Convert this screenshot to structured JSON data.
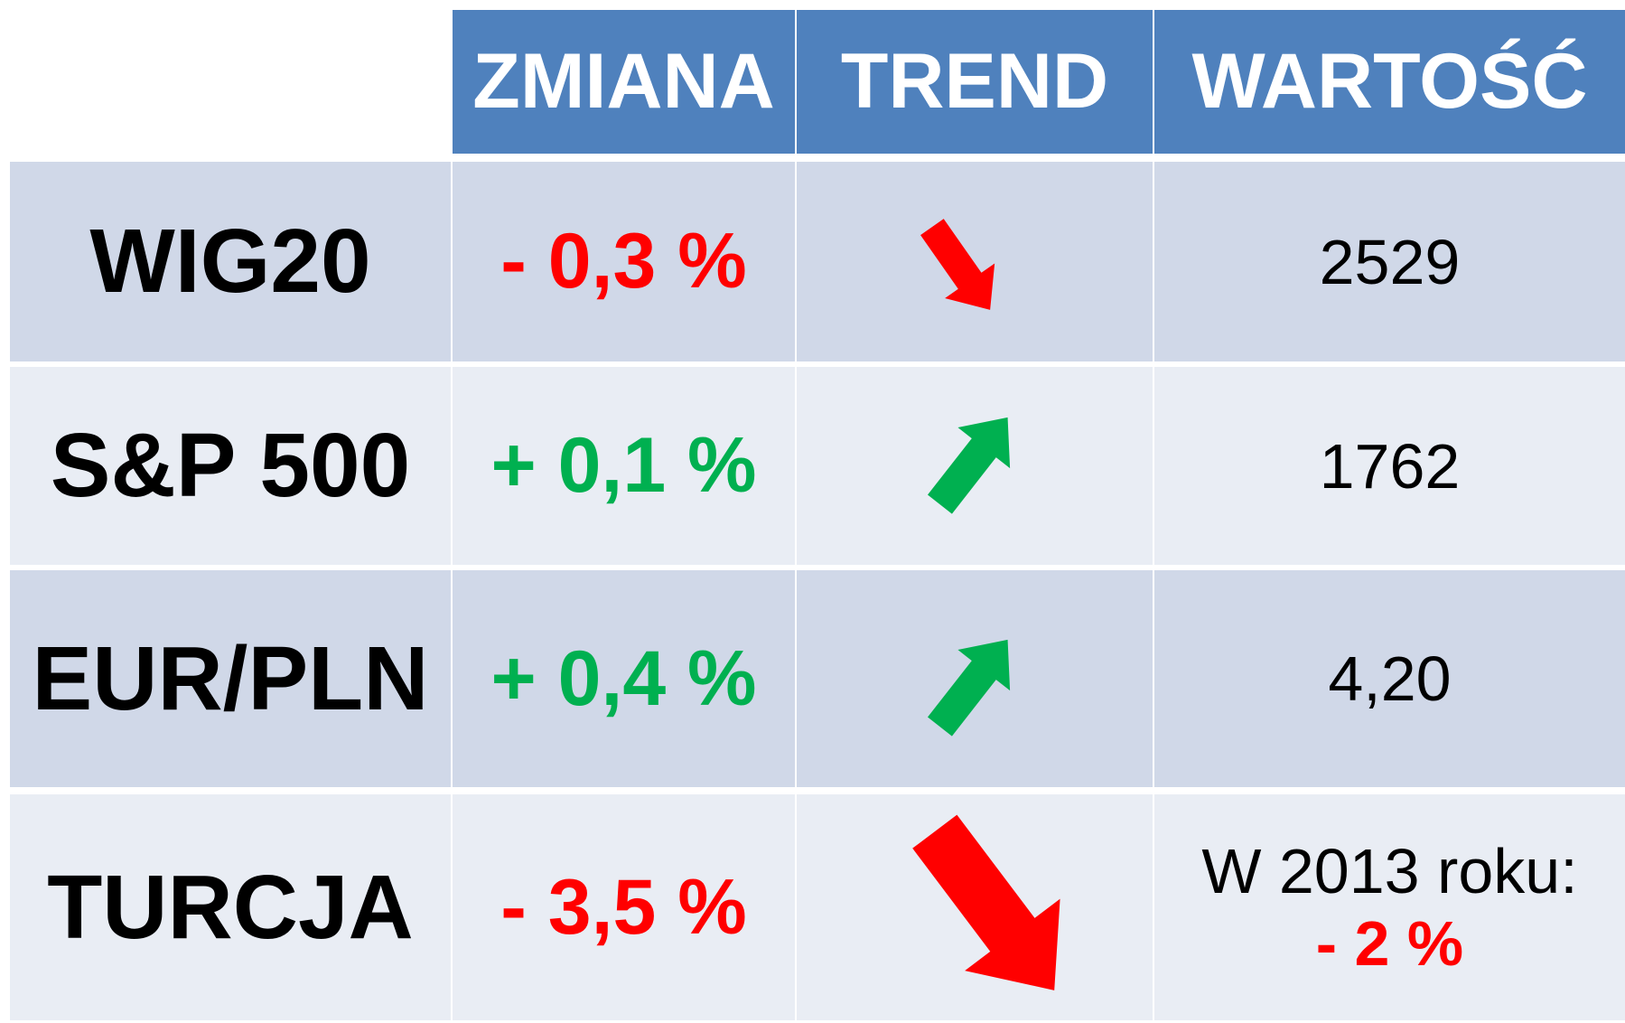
{
  "header": {
    "columns": [
      "ZMIANA",
      "TREND",
      "WARTOŚĆ"
    ]
  },
  "rows": [
    {
      "label": "WIG20",
      "change": "- 0,3 %",
      "value": "2529"
    },
    {
      "label": "S&P 500",
      "change": "+ 0,1 %",
      "value": "1762"
    },
    {
      "label": "EUR/PLN",
      "change": "+ 0,4 %",
      "value": "4,20"
    },
    {
      "label": "TURCJA",
      "change": "- 3,5 %",
      "value": "W 2013 roku:",
      "note": "- 2 %"
    }
  ]
}
